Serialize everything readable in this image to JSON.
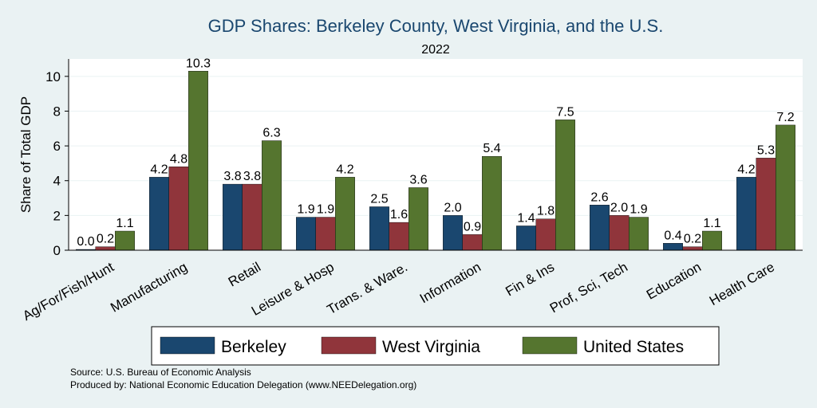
{
  "chart_data": {
    "type": "bar",
    "title": "GDP Shares: Berkeley County, West Virginia, and the U.S.",
    "subtitle": "2022",
    "xlabel": "",
    "ylabel": "Share of Total GDP",
    "ylim": [
      0,
      11
    ],
    "yticks": [
      0,
      2,
      4,
      6,
      8,
      10
    ],
    "categories": [
      "Ag/For/Fish/Hunt",
      "Manufacturing",
      "Retail",
      "Leisure & Hosp",
      "Trans. & Ware.",
      "Information",
      "Fin & Ins",
      "Prof, Sci, Tech",
      "Education",
      "Health Care"
    ],
    "series": [
      {
        "name": "Berkeley",
        "color": "#1a476f",
        "values": [
          0.0,
          4.2,
          3.8,
          1.9,
          2.5,
          2.0,
          1.4,
          2.6,
          0.4,
          4.2
        ],
        "labels": [
          "0.0",
          "4.2",
          "3.8",
          "1.9",
          "2.5",
          "2.0",
          "1.4",
          "2.6",
          "0.4",
          "4.2"
        ]
      },
      {
        "name": "West Virginia",
        "color": "#90353b",
        "values": [
          0.2,
          4.8,
          3.8,
          1.9,
          1.6,
          0.9,
          1.8,
          2.0,
          0.2,
          5.3
        ],
        "labels": [
          "0.2",
          "4.8",
          "3.8",
          "1.9",
          "1.6",
          "0.9",
          "1.8",
          "2.0",
          "0.2",
          "5.3"
        ]
      },
      {
        "name": "United States",
        "color": "#55752f",
        "values": [
          1.1,
          10.3,
          6.3,
          4.2,
          3.6,
          5.4,
          7.5,
          1.9,
          1.1,
          7.2
        ],
        "labels": [
          "1.1",
          "10.3",
          "6.3",
          "4.2",
          "3.6",
          "5.4",
          "7.5",
          "1.9",
          "1.1",
          "7.2"
        ]
      }
    ],
    "grid": true,
    "legend": "bottom-center"
  },
  "notes": {
    "source": "Source: U.S. Bureau of Economic Analysis",
    "produced_by": "Produced by: National Economic Education Delegation (www.NEEDelegation.org)"
  }
}
